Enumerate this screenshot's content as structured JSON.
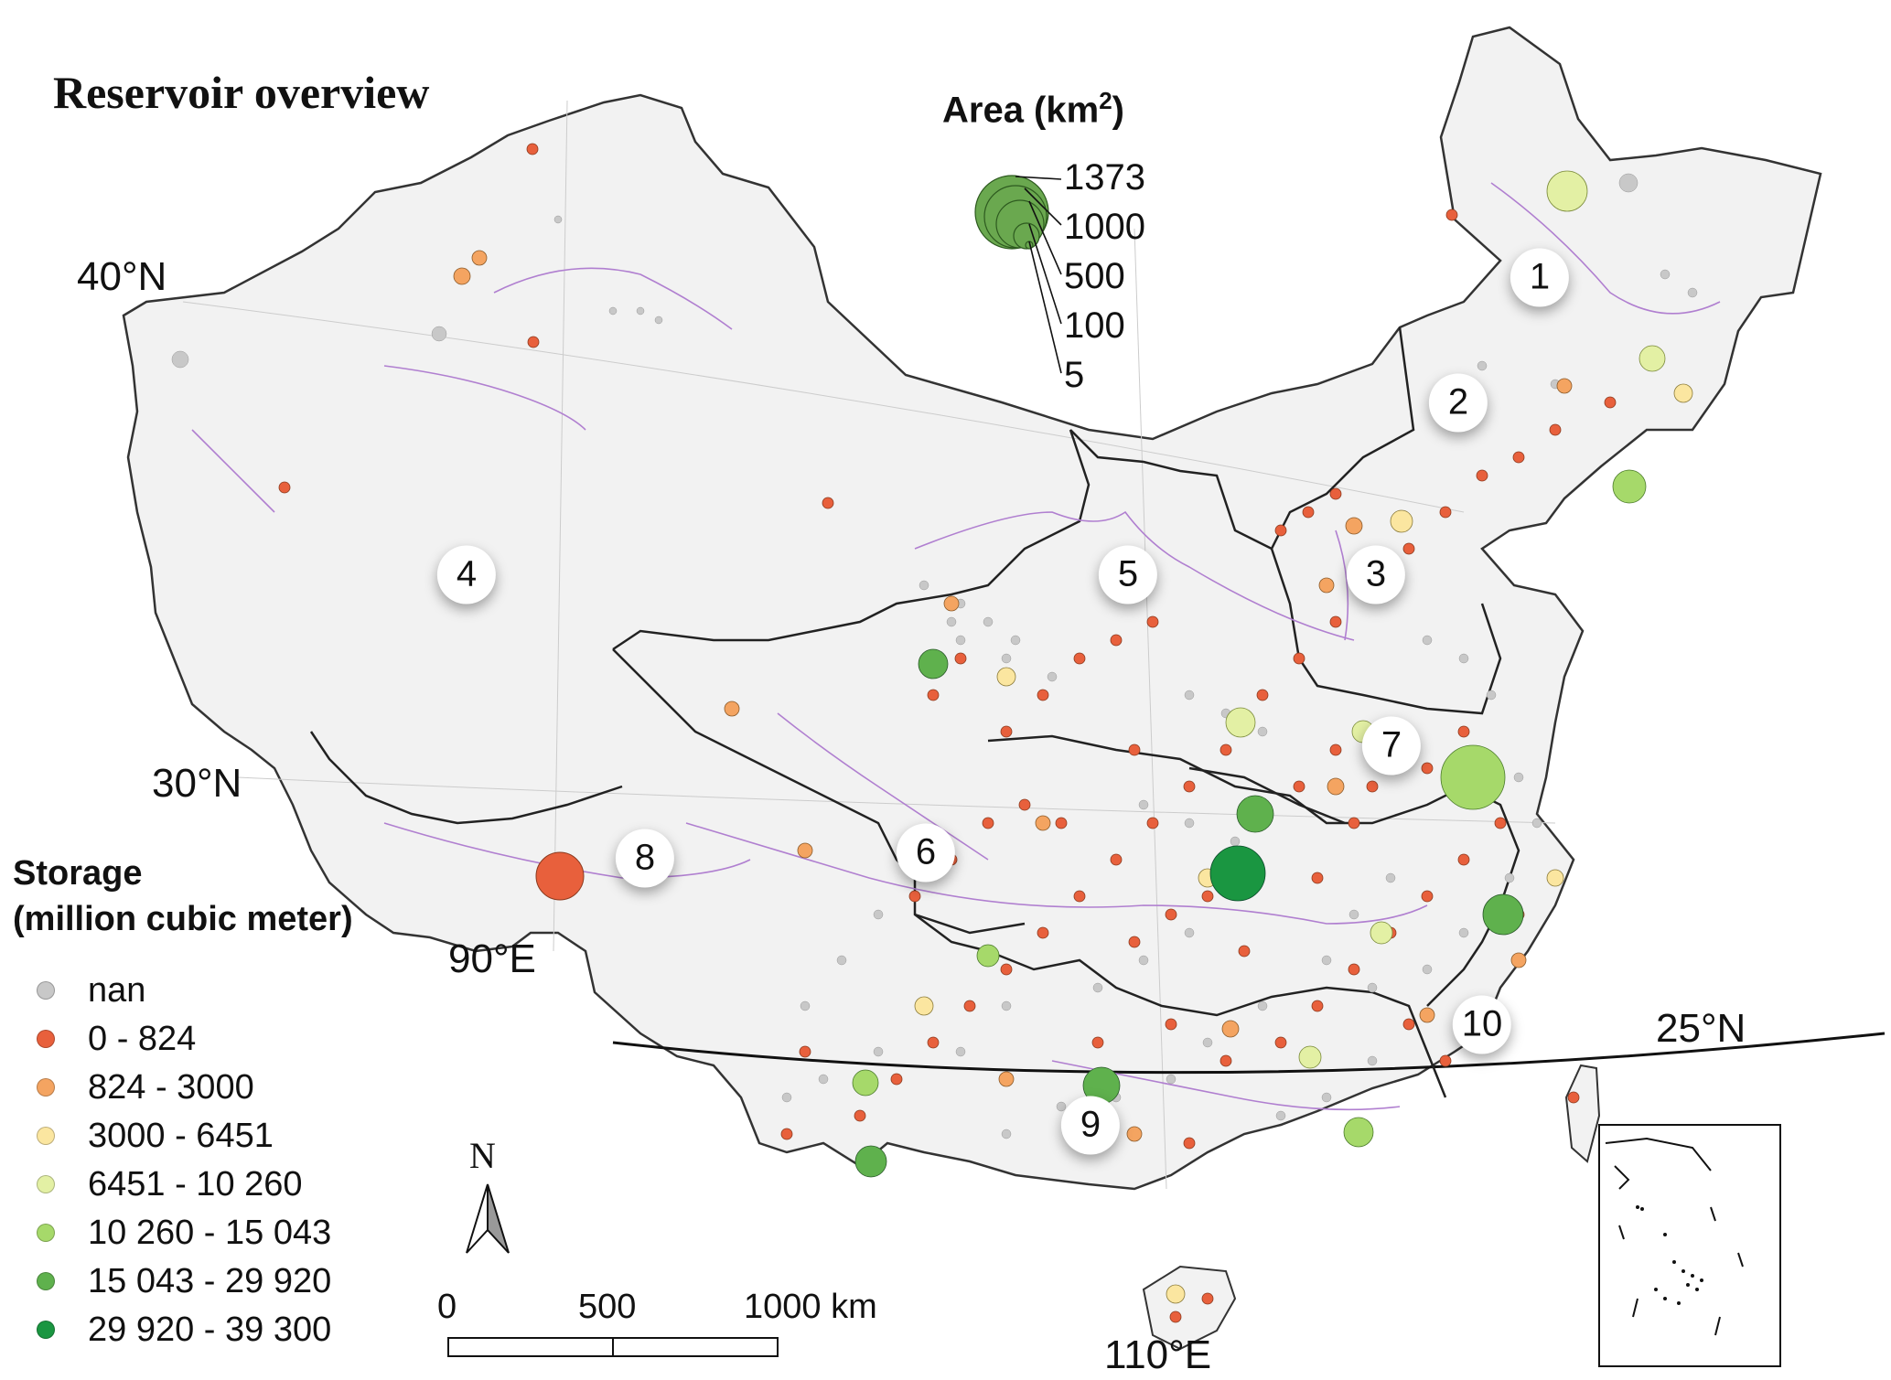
{
  "title": "Reservoir overview",
  "coordinates": {
    "lat40": "40°N",
    "lat30": "30°N",
    "lat25": "25°N",
    "lon90": "90°E",
    "lon110": "110°E"
  },
  "regions": [
    "1",
    "2",
    "3",
    "4",
    "5",
    "6",
    "7",
    "8",
    "9",
    "10"
  ],
  "area_legend": {
    "title": "Area (km",
    "title_sup": "2",
    "title_end": ")",
    "values": [
      "1373",
      "1000",
      "500",
      "100",
      "5"
    ],
    "color": "#6aa84f"
  },
  "storage_legend": {
    "title_line1": "Storage",
    "title_line2": "(million cubic meter)",
    "classes": [
      {
        "label": "nan",
        "color": "#c8c8c8"
      },
      {
        "label": "0 - 824",
        "color": "#e8603c"
      },
      {
        "label": "824 - 3000",
        "color": "#f4a461"
      },
      {
        "label": "3000 - 6451",
        "color": "#fbe6a0"
      },
      {
        "label": "6451 - 10 260",
        "color": "#e3f0a4"
      },
      {
        "label": "10 260 - 15 043",
        "color": "#a6d96a"
      },
      {
        "label": "15 043 - 29 920",
        "color": "#5fb14d"
      },
      {
        "label": "29 920 - 39 300",
        "color": "#1a9641"
      }
    ]
  },
  "north_arrow": "N",
  "scale_bar": {
    "labels": [
      "0",
      "500",
      "1000 km"
    ]
  },
  "colors": {
    "land": "#f2f2f2",
    "border": "#333333",
    "river": "#b07fd0",
    "grid": "#cccccc"
  }
}
